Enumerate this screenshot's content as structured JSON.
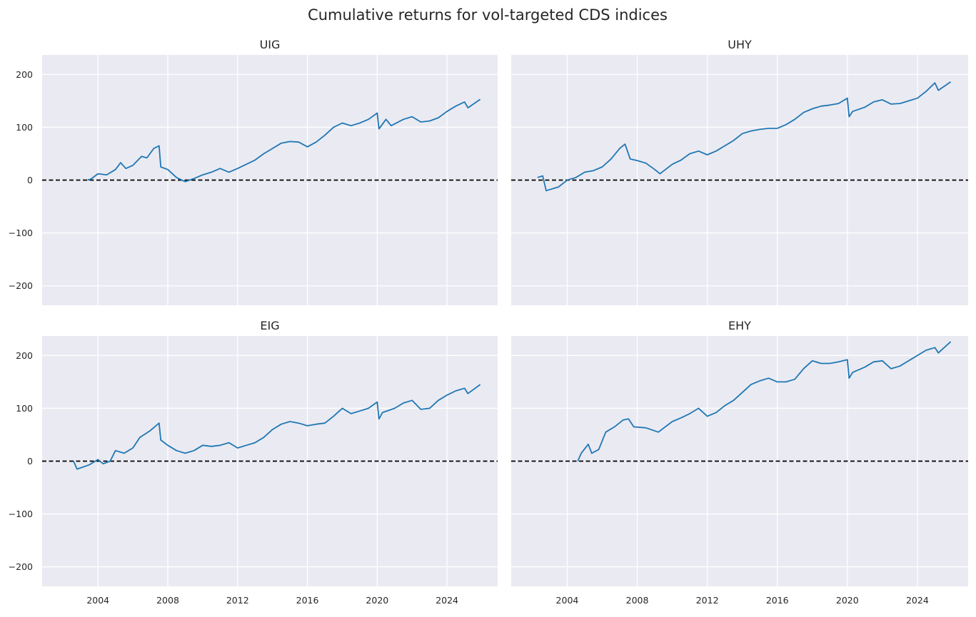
{
  "title": "Cumulative returns for vol-targeted CDS indices",
  "colors": {
    "line": "#1f77b4",
    "panel_bg": "#eaeaf2",
    "grid": "#ffffff",
    "zero_line": "#000000"
  },
  "chart_data": [
    {
      "type": "line",
      "title": "UIG",
      "xlim": [
        2000.8,
        2026.9
      ],
      "ylim": [
        -237,
        237
      ],
      "xticks": [
        2004,
        2008,
        2012,
        2016,
        2020,
        2024
      ],
      "yticks": [
        -200,
        -100,
        0,
        100,
        200
      ],
      "grid": true,
      "reference_line": 0,
      "points": [
        [
          2003.4,
          0
        ],
        [
          2003.6,
          2
        ],
        [
          2004,
          12
        ],
        [
          2004.5,
          10
        ],
        [
          2005,
          20
        ],
        [
          2005.3,
          33
        ],
        [
          2005.6,
          22
        ],
        [
          2006,
          28
        ],
        [
          2006.5,
          45
        ],
        [
          2006.8,
          42
        ],
        [
          2007.2,
          60
        ],
        [
          2007.5,
          65
        ],
        [
          2007.6,
          25
        ],
        [
          2008,
          20
        ],
        [
          2008.5,
          5
        ],
        [
          2009,
          -3
        ],
        [
          2009.5,
          3
        ],
        [
          2010,
          10
        ],
        [
          2010.5,
          15
        ],
        [
          2011,
          22
        ],
        [
          2011.5,
          15
        ],
        [
          2012,
          22
        ],
        [
          2012.5,
          30
        ],
        [
          2013,
          38
        ],
        [
          2013.5,
          50
        ],
        [
          2014,
          60
        ],
        [
          2014.5,
          70
        ],
        [
          2015,
          73
        ],
        [
          2015.5,
          72
        ],
        [
          2016,
          63
        ],
        [
          2016.5,
          72
        ],
        [
          2017,
          85
        ],
        [
          2017.5,
          100
        ],
        [
          2018,
          108
        ],
        [
          2018.5,
          103
        ],
        [
          2019,
          108
        ],
        [
          2019.5,
          115
        ],
        [
          2020,
          127
        ],
        [
          2020.1,
          97
        ],
        [
          2020.5,
          115
        ],
        [
          2020.8,
          103
        ],
        [
          2021.5,
          115
        ],
        [
          2022,
          120
        ],
        [
          2022.5,
          110
        ],
        [
          2023,
          112
        ],
        [
          2023.5,
          118
        ],
        [
          2024,
          130
        ],
        [
          2024.5,
          140
        ],
        [
          2025,
          148
        ],
        [
          2025.2,
          137
        ],
        [
          2025.9,
          153
        ]
      ]
    },
    {
      "type": "line",
      "title": "UHY",
      "xlim": [
        2000.8,
        2026.9
      ],
      "ylim": [
        -237,
        237
      ],
      "xticks": [
        2004,
        2008,
        2012,
        2016,
        2020,
        2024
      ],
      "yticks": [
        -200,
        -100,
        0,
        100,
        200
      ],
      "grid": true,
      "reference_line": 0,
      "points": [
        [
          2002.3,
          5
        ],
        [
          2002.6,
          8
        ],
        [
          2002.8,
          -20
        ],
        [
          2003.5,
          -13
        ],
        [
          2004,
          0
        ],
        [
          2004.5,
          5
        ],
        [
          2005,
          15
        ],
        [
          2005.5,
          18
        ],
        [
          2006,
          25
        ],
        [
          2006.5,
          40
        ],
        [
          2007,
          60
        ],
        [
          2007.3,
          68
        ],
        [
          2007.6,
          40
        ],
        [
          2008,
          37
        ],
        [
          2008.5,
          32
        ],
        [
          2009,
          20
        ],
        [
          2009.3,
          12
        ],
        [
          2010,
          30
        ],
        [
          2010.5,
          38
        ],
        [
          2011,
          50
        ],
        [
          2011.5,
          55
        ],
        [
          2012,
          48
        ],
        [
          2012.5,
          55
        ],
        [
          2013,
          65
        ],
        [
          2013.5,
          75
        ],
        [
          2014,
          88
        ],
        [
          2014.5,
          93
        ],
        [
          2015,
          96
        ],
        [
          2015.5,
          98
        ],
        [
          2016,
          98
        ],
        [
          2016.5,
          105
        ],
        [
          2017,
          115
        ],
        [
          2017.5,
          128
        ],
        [
          2018,
          135
        ],
        [
          2018.5,
          140
        ],
        [
          2019,
          142
        ],
        [
          2019.5,
          145
        ],
        [
          2020,
          155
        ],
        [
          2020.1,
          120
        ],
        [
          2020.3,
          130
        ],
        [
          2021,
          138
        ],
        [
          2021.5,
          148
        ],
        [
          2022,
          152
        ],
        [
          2022.5,
          144
        ],
        [
          2023,
          145
        ],
        [
          2023.5,
          150
        ],
        [
          2024,
          155
        ],
        [
          2024.5,
          168
        ],
        [
          2025,
          184
        ],
        [
          2025.2,
          170
        ],
        [
          2025.9,
          186
        ]
      ]
    },
    {
      "type": "line",
      "title": "EIG",
      "xlim": [
        2000.8,
        2026.9
      ],
      "ylim": [
        -237,
        237
      ],
      "xticks": [
        2004,
        2008,
        2012,
        2016,
        2020,
        2024
      ],
      "yticks": [
        -200,
        -100,
        0,
        100,
        200
      ],
      "grid": true,
      "reference_line": 0,
      "points": [
        [
          2002.6,
          0
        ],
        [
          2002.8,
          -15
        ],
        [
          2003.5,
          -7
        ],
        [
          2004,
          3
        ],
        [
          2004.3,
          -5
        ],
        [
          2004.7,
          0
        ],
        [
          2005,
          20
        ],
        [
          2005.5,
          15
        ],
        [
          2006,
          25
        ],
        [
          2006.4,
          45
        ],
        [
          2007,
          58
        ],
        [
          2007.5,
          72
        ],
        [
          2007.6,
          40
        ],
        [
          2008,
          30
        ],
        [
          2008.5,
          20
        ],
        [
          2009,
          15
        ],
        [
          2009.5,
          20
        ],
        [
          2010,
          30
        ],
        [
          2010.5,
          28
        ],
        [
          2011,
          30
        ],
        [
          2011.5,
          35
        ],
        [
          2012,
          25
        ],
        [
          2012.5,
          30
        ],
        [
          2013,
          35
        ],
        [
          2013.5,
          45
        ],
        [
          2014,
          60
        ],
        [
          2014.5,
          70
        ],
        [
          2015,
          75
        ],
        [
          2015.5,
          72
        ],
        [
          2016,
          67
        ],
        [
          2016.5,
          70
        ],
        [
          2017,
          72
        ],
        [
          2017.5,
          85
        ],
        [
          2018,
          100
        ],
        [
          2018.5,
          90
        ],
        [
          2019,
          95
        ],
        [
          2019.5,
          100
        ],
        [
          2020,
          112
        ],
        [
          2020.1,
          80
        ],
        [
          2020.3,
          92
        ],
        [
          2021,
          100
        ],
        [
          2021.5,
          110
        ],
        [
          2022,
          115
        ],
        [
          2022.5,
          98
        ],
        [
          2023,
          100
        ],
        [
          2023.5,
          115
        ],
        [
          2024,
          125
        ],
        [
          2024.5,
          133
        ],
        [
          2025,
          138
        ],
        [
          2025.2,
          128
        ],
        [
          2025.9,
          145
        ]
      ]
    },
    {
      "type": "line",
      "title": "EHY",
      "xlim": [
        2000.8,
        2026.9
      ],
      "ylim": [
        -237,
        237
      ],
      "xticks": [
        2004,
        2008,
        2012,
        2016,
        2020,
        2024
      ],
      "yticks": [
        -200,
        -100,
        0,
        100,
        200
      ],
      "grid": true,
      "reference_line": 0,
      "points": [
        [
          2004.6,
          0
        ],
        [
          2004.8,
          15
        ],
        [
          2005.2,
          32
        ],
        [
          2005.4,
          15
        ],
        [
          2005.8,
          22
        ],
        [
          2006.2,
          55
        ],
        [
          2006.7,
          65
        ],
        [
          2007.2,
          78
        ],
        [
          2007.5,
          80
        ],
        [
          2007.8,
          65
        ],
        [
          2008.5,
          63
        ],
        [
          2009.2,
          55
        ],
        [
          2010,
          75
        ],
        [
          2010.5,
          82
        ],
        [
          2011,
          90
        ],
        [
          2011.5,
          100
        ],
        [
          2012,
          85
        ],
        [
          2012.5,
          92
        ],
        [
          2013,
          105
        ],
        [
          2013.5,
          115
        ],
        [
          2014,
          130
        ],
        [
          2014.5,
          145
        ],
        [
          2015,
          152
        ],
        [
          2015.5,
          157
        ],
        [
          2016,
          150
        ],
        [
          2016.5,
          150
        ],
        [
          2017,
          155
        ],
        [
          2017.5,
          175
        ],
        [
          2018,
          190
        ],
        [
          2018.5,
          185
        ],
        [
          2019,
          185
        ],
        [
          2019.5,
          188
        ],
        [
          2020,
          192
        ],
        [
          2020.1,
          157
        ],
        [
          2020.3,
          168
        ],
        [
          2021,
          178
        ],
        [
          2021.5,
          188
        ],
        [
          2022,
          190
        ],
        [
          2022.5,
          175
        ],
        [
          2023,
          180
        ],
        [
          2023.5,
          190
        ],
        [
          2024,
          200
        ],
        [
          2024.5,
          210
        ],
        [
          2025,
          215
        ],
        [
          2025.2,
          205
        ],
        [
          2025.9,
          226
        ]
      ]
    }
  ]
}
